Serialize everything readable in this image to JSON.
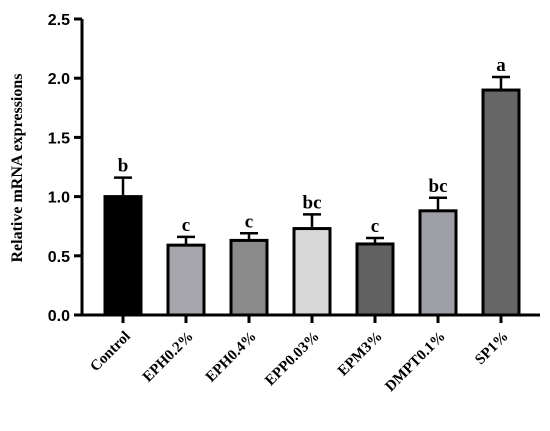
{
  "chart_data": {
    "type": "bar",
    "title": "",
    "xlabel": "",
    "ylabel": "Relative mRNA expressions",
    "ylim": [
      0,
      2.5
    ],
    "yticks": [
      "0.0",
      "0.5",
      "1.0",
      "1.5",
      "2.0",
      "2.5"
    ],
    "grid": false,
    "categories": [
      "Control",
      "EPH0.2%",
      "EPH0.4%",
      "EPP0.03%",
      "EPM3%",
      "DMPT0.1%",
      "SP1%"
    ],
    "values": [
      1.0,
      0.59,
      0.63,
      0.73,
      0.6,
      0.88,
      1.9
    ],
    "errors": [
      0.16,
      0.07,
      0.06,
      0.12,
      0.05,
      0.11,
      0.11
    ],
    "significance_labels": [
      "b",
      "c",
      "c",
      "bc",
      "c",
      "bc",
      "a"
    ],
    "bar_colors": [
      "#000000",
      "#a6a6ac",
      "#8a8a8a",
      "#d8d8d8",
      "#616161",
      "#9e9ea6",
      "#666666"
    ]
  }
}
